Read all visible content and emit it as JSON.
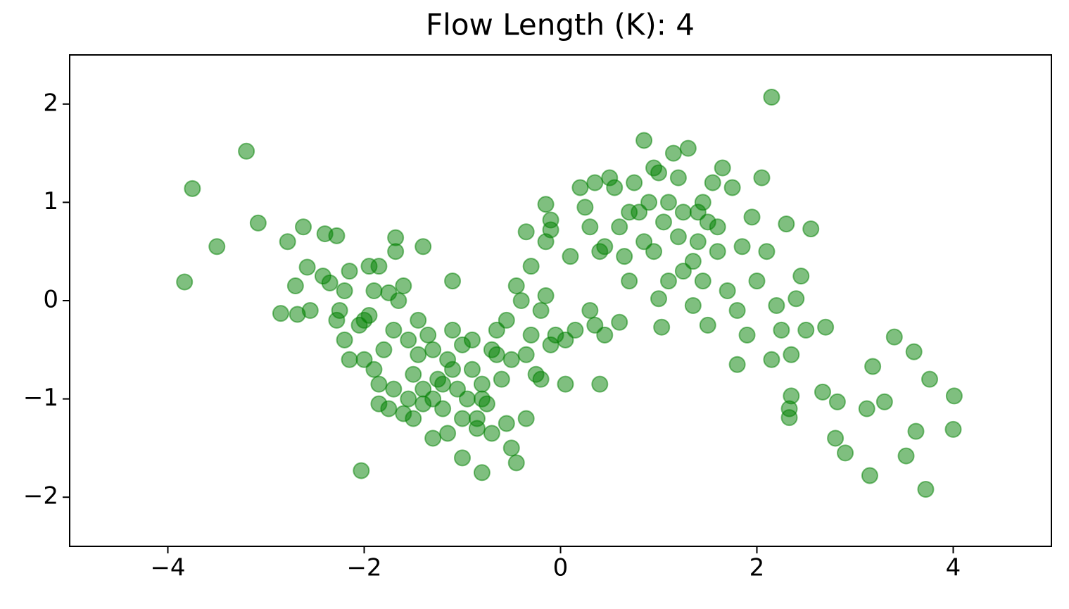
{
  "chart_data": {
    "type": "scatter",
    "title": "Flow Length (K): 4",
    "color": "green",
    "alpha": 0.5,
    "xlim": [
      -5,
      5
    ],
    "ylim": [
      -2.5,
      2.5
    ],
    "xticks": [
      {
        "value": -4,
        "label": "−4"
      },
      {
        "value": -2,
        "label": "−2"
      },
      0,
      2,
      4
    ],
    "yticks": [
      {
        "value": -2,
        "label": "−2"
      },
      {
        "value": -1,
        "label": "−1"
      },
      0,
      1,
      2
    ],
    "grid": false,
    "x": [
      -3.83,
      -3.75,
      -3.2,
      -3.5,
      -3.08,
      -2.78,
      -2.62,
      -2.4,
      -2.28,
      -2.85,
      -2.68,
      -2.55,
      -2.58,
      -2.7,
      -2.42,
      -2.35,
      -2.2,
      -2.15,
      -2.25,
      -2.28,
      -2.2,
      -2.15,
      -2.0,
      -1.95,
      -1.85,
      -1.9,
      -1.75,
      -1.68,
      -1.68,
      -1.6,
      -1.4,
      -1.1,
      -2.03,
      -1.85,
      -1.75,
      -1.6,
      -1.5,
      -1.3,
      -1.15,
      -1.0,
      -0.8,
      -0.5,
      -0.45,
      -0.35,
      -0.55,
      -0.85,
      -0.7,
      -2.0,
      -1.9,
      -1.8,
      -1.7,
      -1.65,
      -1.55,
      -1.5,
      -1.45,
      -1.4,
      -1.35,
      -1.3,
      -1.25,
      -1.2,
      -1.15,
      -1.1,
      -1.05,
      -1.0,
      -0.95,
      -0.9,
      -0.85,
      -0.8,
      -0.75,
      -0.7,
      -0.65,
      -0.6,
      -0.55,
      -0.5,
      -0.45,
      -0.4,
      -0.35,
      -0.3,
      -0.25,
      -0.2,
      -0.15,
      -0.1,
      -0.05,
      0.05,
      0.15,
      -0.3,
      -0.35,
      -0.15,
      -0.15,
      -0.1,
      -0.1,
      0.05,
      -0.2,
      0.4,
      0.3,
      0.35,
      0.45,
      0.6,
      -1.45,
      -1.95,
      -2.05,
      -1.85,
      -1.7,
      -1.55,
      -1.4,
      -1.2,
      -1.0,
      -0.8,
      -0.9,
      -0.65,
      -1.1,
      -1.3,
      0.1,
      0.2,
      0.25,
      0.3,
      0.35,
      0.4,
      0.45,
      0.5,
      0.55,
      0.6,
      0.65,
      0.7,
      0.75,
      0.8,
      0.85,
      0.9,
      0.95,
      1.0,
      1.05,
      1.1,
      1.15,
      1.2,
      1.25,
      1.3,
      1.35,
      1.4,
      1.45,
      1.5,
      1.55,
      1.6,
      1.65,
      1.7,
      1.75,
      1.8,
      1.85,
      1.9,
      1.95,
      2.0,
      2.05,
      2.1,
      2.15,
      2.2,
      2.25,
      2.3,
      2.35,
      2.4,
      2.45,
      2.5,
      2.55,
      2.7,
      1.0,
      1.03,
      1.35,
      1.5,
      1.8,
      0.95,
      1.1,
      1.4,
      1.25,
      0.85,
      0.7,
      1.6,
      1.2,
      1.45,
      2.15,
      2.67,
      2.8,
      2.82,
      2.9,
      3.12,
      3.15,
      3.18,
      3.3,
      3.4,
      3.52,
      3.6,
      3.62,
      3.72,
      3.76,
      4.01,
      4.0,
      2.33,
      2.35,
      2.33
    ],
    "y": [
      0.19,
      1.14,
      1.52,
      0.55,
      0.79,
      0.6,
      0.75,
      0.68,
      0.66,
      -0.13,
      -0.14,
      -0.1,
      0.34,
      0.15,
      0.25,
      0.18,
      0.1,
      0.3,
      -0.1,
      -0.2,
      -0.4,
      -0.6,
      -0.2,
      0.35,
      0.35,
      0.1,
      0.08,
      0.64,
      0.5,
      0.15,
      0.55,
      0.2,
      -1.73,
      -1.05,
      -1.1,
      -1.15,
      -1.2,
      -1.4,
      -1.35,
      -1.6,
      -1.75,
      -1.5,
      -1.65,
      -1.2,
      -1.25,
      -1.3,
      -1.35,
      -0.6,
      -0.7,
      -0.5,
      -0.3,
      0.0,
      -0.4,
      -0.75,
      -0.55,
      -0.9,
      -0.35,
      -1.0,
      -0.8,
      -1.1,
      -0.6,
      -0.3,
      -0.9,
      -0.45,
      -1.0,
      -0.7,
      -1.2,
      -0.85,
      -1.05,
      -0.5,
      -0.3,
      -0.8,
      -0.2,
      -0.6,
      0.15,
      0.0,
      -0.55,
      -0.35,
      -0.75,
      -0.1,
      0.05,
      -0.45,
      -0.35,
      -0.4,
      -0.3,
      0.35,
      0.7,
      0.6,
      0.98,
      0.82,
      0.72,
      -0.85,
      -0.8,
      -0.85,
      -0.1,
      -0.25,
      -0.35,
      -0.22,
      -0.2,
      -0.15,
      -0.25,
      -0.85,
      -0.9,
      -1.0,
      -1.05,
      -0.85,
      -1.2,
      -1.0,
      -0.4,
      -0.55,
      -0.7,
      -0.5,
      0.45,
      1.15,
      0.95,
      0.75,
      1.2,
      0.5,
      0.55,
      1.25,
      1.15,
      0.75,
      0.45,
      0.2,
      1.2,
      0.9,
      1.63,
      1.0,
      0.5,
      1.3,
      0.8,
      0.2,
      1.5,
      0.65,
      0.9,
      1.55,
      0.4,
      0.6,
      0.2,
      0.8,
      1.2,
      0.5,
      1.35,
      0.1,
      1.15,
      -0.1,
      0.55,
      -0.35,
      0.85,
      0.2,
      1.25,
      0.5,
      -0.6,
      -0.05,
      -0.3,
      0.78,
      -0.55,
      0.02,
      0.25,
      -0.3,
      0.73,
      -0.27,
      0.02,
      -0.27,
      -0.05,
      -0.25,
      -0.65,
      1.35,
      1.0,
      0.9,
      0.3,
      0.6,
      0.9,
      0.75,
      1.25,
      1.0,
      2.07,
      -0.93,
      -1.4,
      -1.03,
      -1.55,
      -1.1,
      -1.78,
      -0.67,
      -1.03,
      -0.37,
      -1.58,
      -0.52,
      -1.33,
      -1.92,
      -0.8,
      -0.97,
      -1.31,
      -1.1,
      -0.97,
      -1.19
    ]
  }
}
